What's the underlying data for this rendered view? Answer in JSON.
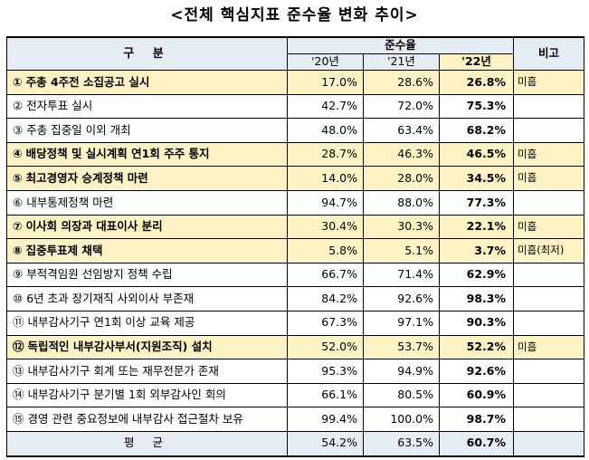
{
  "title": "<전체 핵심지표 준수율 변화 추이>",
  "header": {
    "category": "구 분",
    "compliance": "준수율",
    "note": "비고",
    "years": [
      "'20년",
      "'21년",
      "'22년"
    ]
  },
  "rows": [
    {
      "num": "①",
      "name": "주총 4주전 소집공고 실시",
      "y20": "17.0%",
      "y21": "28.6%",
      "y22": "26.8%",
      "note": "미흡",
      "highlight": true
    },
    {
      "num": "②",
      "name": "전자투표 실시",
      "y20": "42.7%",
      "y21": "72.0%",
      "y22": "75.3%",
      "note": "",
      "highlight": false
    },
    {
      "num": "③",
      "name": "주총 집중일 이외 개최",
      "y20": "48.0%",
      "y21": "63.4%",
      "y22": "68.2%",
      "note": "",
      "highlight": false
    },
    {
      "num": "④",
      "name": "배당정책 및 실시계획 연1회 주주 통지",
      "y20": "28.7%",
      "y21": "46.3%",
      "y22": "46.5%",
      "note": "미흡",
      "highlight": true
    },
    {
      "num": "⑤",
      "name": "최고경영자 승계정책 마련",
      "y20": "14.0%",
      "y21": "28.0%",
      "y22": "34.5%",
      "note": "미흡",
      "highlight": true
    },
    {
      "num": "⑥",
      "name": "내부통제정책 마련",
      "y20": "94.7%",
      "y21": "88.0%",
      "y22": "77.3%",
      "note": "",
      "highlight": false
    },
    {
      "num": "⑦",
      "name": "이사회 의장과 대표이사 분리",
      "y20": "30.4%",
      "y21": "30.3%",
      "y22": "22.1%",
      "note": "미흡",
      "highlight": true
    },
    {
      "num": "⑧",
      "name": "집중투표제 채택",
      "y20": "5.8%",
      "y21": "5.1%",
      "y22": "3.7%",
      "note": "미흡(최저)",
      "highlight": true
    },
    {
      "num": "⑨",
      "name": "부적격임원 선임방지 정책 수립",
      "y20": "66.7%",
      "y21": "71.4%",
      "y22": "62.9%",
      "note": "",
      "highlight": false
    },
    {
      "num": "⑩",
      "name": "6년 초과 장기재직 사외이사 부존재",
      "y20": "84.2%",
      "y21": "92.6%",
      "y22": "98.3%",
      "note": "",
      "highlight": false
    },
    {
      "num": "⑪",
      "name": "내부감사기구 연1회 이상 교육 제공",
      "y20": "67.3%",
      "y21": "97.1%",
      "y22": "90.3%",
      "note": "",
      "highlight": false
    },
    {
      "num": "⑫",
      "name": "독립적인 내부감사부서(지원조직) 설치",
      "y20": "52.0%",
      "y21": "53.7%",
      "y22": "52.2%",
      "note": "미흡",
      "highlight": true
    },
    {
      "num": "⑬",
      "name": "내부감사기구 회계 또는 재무전문가 존재",
      "y20": "95.3%",
      "y21": "94.9%",
      "y22": "92.6%",
      "note": "",
      "highlight": false
    },
    {
      "num": "⑭",
      "name": "내부감사기구 분기별 1회 외부감사인 회의",
      "y20": "66.1%",
      "y21": "80.5%",
      "y22": "60.9%",
      "note": "",
      "highlight": false
    },
    {
      "num": "⑮",
      "name": "경영 관련 중요정보에 내부감사 접근절차 보유",
      "y20": "99.4%",
      "y21": "100.0%",
      "y22": "98.7%",
      "note": "",
      "highlight": false
    }
  ],
  "average": {
    "label": "평 균",
    "y20": "54.2%",
    "y21": "63.5%",
    "y22": "60.7%",
    "note": ""
  },
  "colors": {
    "highlight": "#fdf2c3",
    "header": "#e5ecf4"
  }
}
